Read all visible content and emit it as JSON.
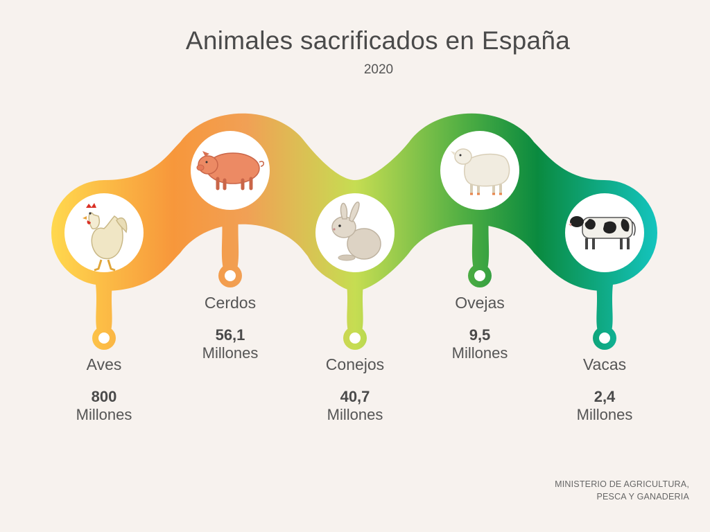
{
  "title": "Animales sacrificados en España",
  "subtitle": "2020",
  "source": "MINISTERIO DE AGRICULTURA, PESCA Y GANADERIA",
  "colors": {
    "gradient": [
      "#ffd84e",
      "#f7973b",
      "#f1a055",
      "#c6dd52",
      "#4fae43",
      "#0a8a3f",
      "#14c5c0"
    ]
  },
  "items": [
    {
      "name": "Aves",
      "value": "800",
      "unit": "Millones",
      "icon": "chicken-icon"
    },
    {
      "name": "Cerdos",
      "value": "56,1",
      "unit": "Millones",
      "icon": "pig-icon"
    },
    {
      "name": "Conejos",
      "value": "40,7",
      "unit": "Millones",
      "icon": "rabbit-icon"
    },
    {
      "name": "Ovejas",
      "value": "9,5",
      "unit": "Millones",
      "icon": "sheep-icon"
    },
    {
      "name": "Vacas",
      "value": "2,4",
      "unit": "Millones",
      "icon": "cow-icon"
    }
  ]
}
